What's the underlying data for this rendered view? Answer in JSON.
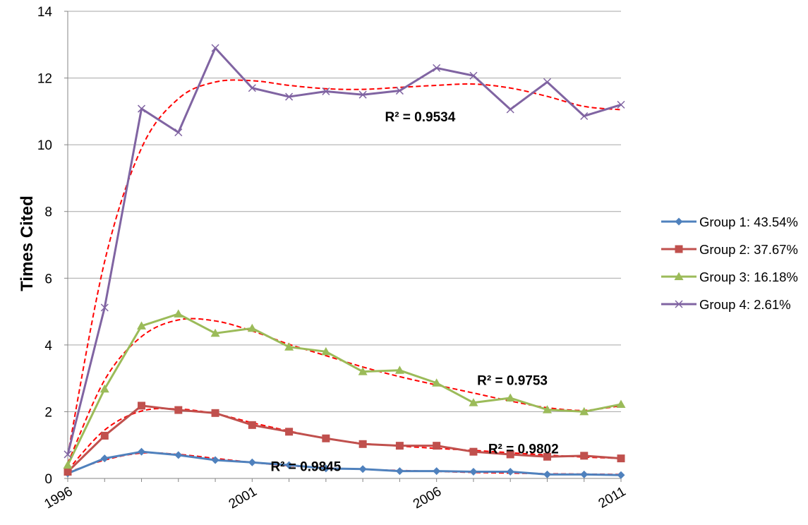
{
  "chart_data": {
    "type": "line",
    "title": "",
    "ylabel": "Times Cited",
    "xlabel": "",
    "x": [
      1996,
      1997,
      1998,
      1999,
      2000,
      2001,
      2002,
      2003,
      2004,
      2005,
      2006,
      2007,
      2008,
      2009,
      2010,
      2011
    ],
    "x_tick_labels": [
      "1996",
      "2001",
      "2006",
      "2011"
    ],
    "x_tick_values": [
      1996,
      2001,
      2006,
      2011
    ],
    "y_tick_labels": [
      "0",
      "2",
      "4",
      "6",
      "8",
      "10",
      "12",
      "14"
    ],
    "ylim": [
      0,
      14
    ],
    "xlim": [
      1996,
      2011
    ],
    "grid": "horizontal",
    "legend_position": "right",
    "series": [
      {
        "name": "Group 1: 43.54%",
        "color": "#4f81bd",
        "marker": "diamond",
        "values": [
          0.15,
          0.6,
          0.8,
          0.7,
          0.55,
          0.48,
          0.4,
          0.3,
          0.28,
          0.22,
          0.22,
          0.2,
          0.2,
          0.12,
          0.12,
          0.1
        ],
        "trend": [
          0.18,
          0.55,
          0.76,
          0.72,
          0.6,
          0.48,
          0.38,
          0.32,
          0.27,
          0.24,
          0.21,
          0.18,
          0.16,
          0.14,
          0.13,
          0.12
        ],
        "r2_label": "R² = 0.9845"
      },
      {
        "name": "Group 2: 37.67%",
        "color": "#c0504d",
        "marker": "square",
        "values": [
          0.2,
          1.28,
          2.18,
          2.05,
          1.96,
          1.6,
          1.4,
          1.2,
          1.03,
          0.98,
          0.98,
          0.8,
          0.72,
          0.65,
          0.68,
          0.6
        ],
        "trend": [
          0.25,
          1.45,
          2.02,
          2.08,
          1.94,
          1.67,
          1.42,
          1.2,
          1.05,
          0.97,
          0.9,
          0.84,
          0.77,
          0.7,
          0.64,
          0.6
        ],
        "r2_label": "R² = 0.9802"
      },
      {
        "name": "Group 3: 16.18%",
        "color": "#9bbb59",
        "marker": "triangle",
        "values": [
          0.4,
          2.68,
          4.57,
          4.93,
          4.35,
          4.5,
          3.94,
          3.8,
          3.2,
          3.24,
          2.86,
          2.27,
          2.41,
          2.06,
          2.0,
          2.22
        ],
        "trend": [
          0.45,
          2.95,
          4.25,
          4.75,
          4.72,
          4.42,
          4.02,
          3.68,
          3.34,
          3.05,
          2.8,
          2.56,
          2.32,
          2.12,
          2.04,
          2.18
        ],
        "r2_label": "R² = 0.9753"
      },
      {
        "name": "Group 4: 2.61%",
        "color": "#8064a2",
        "marker": "x",
        "values": [
          0.72,
          5.12,
          11.08,
          10.37,
          12.9,
          11.7,
          11.44,
          11.6,
          11.5,
          11.62,
          12.3,
          12.07,
          11.06,
          11.88,
          10.86,
          11.2
        ],
        "trend": [
          0.7,
          6.5,
          9.9,
          11.38,
          11.88,
          11.92,
          11.78,
          11.68,
          11.66,
          11.72,
          11.78,
          11.82,
          11.7,
          11.45,
          11.15,
          11.05
        ],
        "r2_label": "R² = 0.9534"
      }
    ],
    "trendline_color": "#ff0000"
  }
}
